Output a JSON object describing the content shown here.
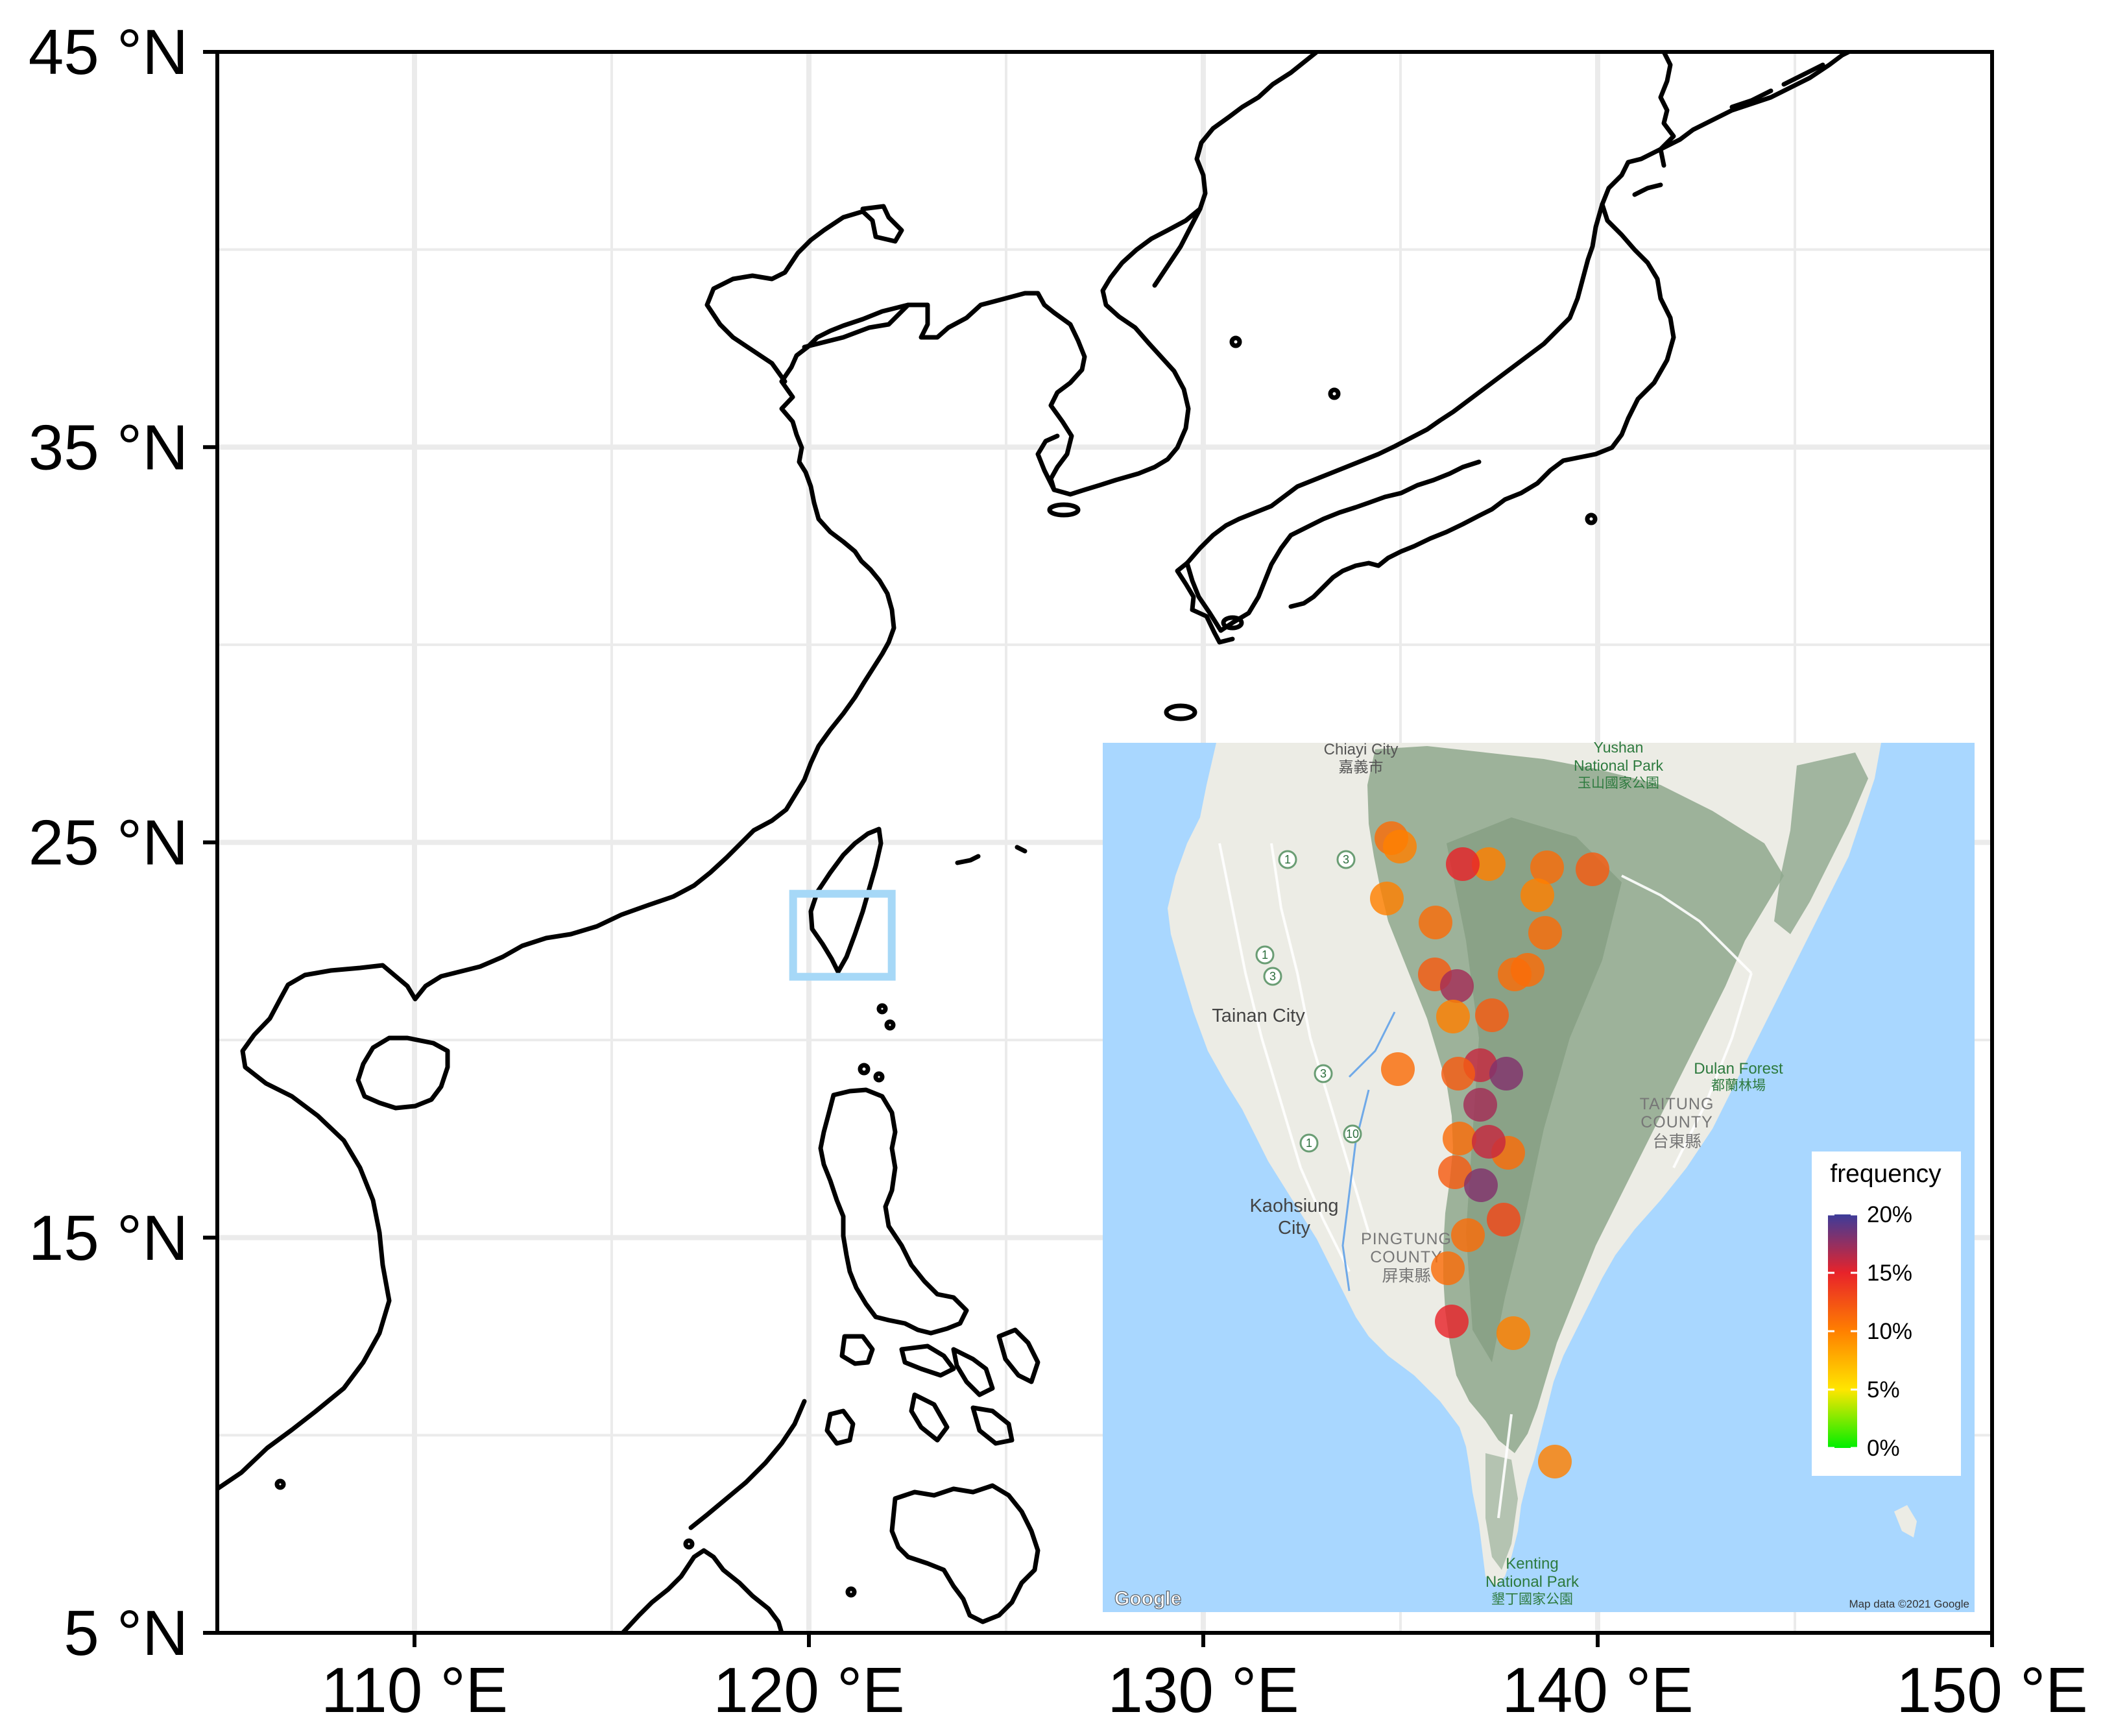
{
  "map": {
    "lon_range": [
      105,
      150
    ],
    "lat_range": [
      5,
      45
    ],
    "x_ticks": [
      {
        "lon": 110,
        "label": "110 °E"
      },
      {
        "lon": 120,
        "label": "120 °E"
      },
      {
        "lon": 130,
        "label": "130 °E"
      },
      {
        "lon": 140,
        "label": "140 °E"
      },
      {
        "lon": 150,
        "label": "150 °E"
      }
    ],
    "y_ticks": [
      {
        "lat": 45,
        "label": "45 °N"
      },
      {
        "lat": 35,
        "label": "35 °N"
      },
      {
        "lat": 25,
        "label": "25 °N"
      },
      {
        "lat": 15,
        "label": "15 °N"
      },
      {
        "lat": 5,
        "label": "5 °N"
      }
    ],
    "grid": true,
    "highlight_box": {
      "lon": [
        119.6,
        122.1
      ],
      "lat": [
        21.6,
        23.7
      ],
      "color": "#a6d8f7"
    },
    "coastline_color": "#000000",
    "grid_color": "#ebebeb"
  },
  "inset": {
    "water_color": "#a9d7ff",
    "land_color": "#ecece5",
    "mountain_color": "#8fa88d",
    "place_labels": [
      {
        "text": "Chiayi City",
        "kind": "city"
      },
      {
        "text": "嘉義市",
        "kind": "city"
      },
      {
        "text": "Yushan",
        "kind": "park"
      },
      {
        "text": "National Park",
        "kind": "park"
      },
      {
        "text": "玉山國家公園",
        "kind": "park"
      },
      {
        "text": "Tainan City",
        "kind": "city"
      },
      {
        "text": "Dulan Forest",
        "kind": "park"
      },
      {
        "text": "都蘭林場",
        "kind": "park"
      },
      {
        "text": "TAITUNG",
        "kind": "county"
      },
      {
        "text": "COUNTY",
        "kind": "county"
      },
      {
        "text": "台東縣",
        "kind": "county"
      },
      {
        "text": "Kaohsiung",
        "kind": "city"
      },
      {
        "text": "City",
        "kind": "city"
      },
      {
        "text": "PINGTUNG",
        "kind": "county"
      },
      {
        "text": "COUNTY",
        "kind": "county"
      },
      {
        "text": "屏東縣",
        "kind": "county"
      },
      {
        "text": "Kenting",
        "kind": "park"
      },
      {
        "text": "National Park",
        "kind": "park"
      },
      {
        "text": "墾丁國家公園",
        "kind": "park"
      }
    ],
    "road_shields": [
      "1",
      "3",
      "1",
      "3",
      "3",
      "1",
      "10"
    ],
    "google_logo": "Google",
    "attribution": "Map data ©2021 Google",
    "points_frequency_pct": [
      11,
      10,
      10,
      11,
      12,
      15,
      10,
      11,
      10,
      11,
      12,
      11,
      11,
      17,
      10,
      12,
      11,
      16,
      18,
      12,
      17,
      11,
      11,
      16,
      12,
      18,
      13,
      11,
      11,
      15,
      10,
      10
    ]
  },
  "legend": {
    "title": "frequency",
    "labels": [
      "20%",
      "15%",
      "10%",
      "5%",
      "0%"
    ],
    "colors": [
      "#3c3c9a",
      "#e8232a",
      "#ff8000",
      "#ffe600",
      "#00ee00"
    ]
  }
}
